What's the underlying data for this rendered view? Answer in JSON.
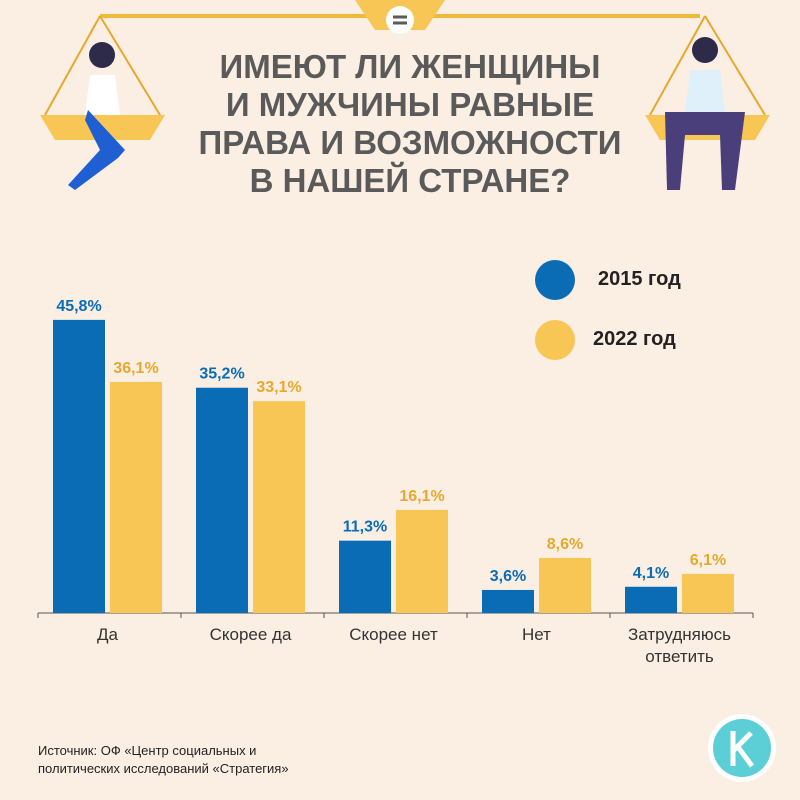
{
  "chart_data": {
    "type": "bar",
    "title": "ИМЕЮТ ЛИ ЖЕНЩИНЫ\nИ МУЖЧИНЫ РАВНЫЕ\nПРАВА И ВОЗМОЖНОСТИ\nВ НАШЕЙ СТРАНЕ?",
    "categories": [
      "Да",
      "Скорее да",
      "Скорее нет",
      "Нет",
      "Затрудняюсь\nответить"
    ],
    "series": [
      {
        "name": "2015 год",
        "color": "#0b6cb6",
        "label_color": "#0b6cb6",
        "values": [
          45.8,
          35.2,
          11.3,
          3.6,
          4.1
        ],
        "value_labels": [
          "45,8%",
          "35,2%",
          "11,3%",
          "3,6%",
          "4,1%"
        ]
      },
      {
        "name": "2022 год",
        "color": "#f7c654",
        "label_color": "#e6a92e",
        "values": [
          36.1,
          33.1,
          16.1,
          8.6,
          6.1
        ],
        "value_labels": [
          "36,1%",
          "33,1%",
          "16,1%",
          "8,6%",
          "6,1%"
        ]
      }
    ],
    "source": "Источник: ОФ «Центр социальных и\nполитических исследований «Стратегия»"
  }
}
